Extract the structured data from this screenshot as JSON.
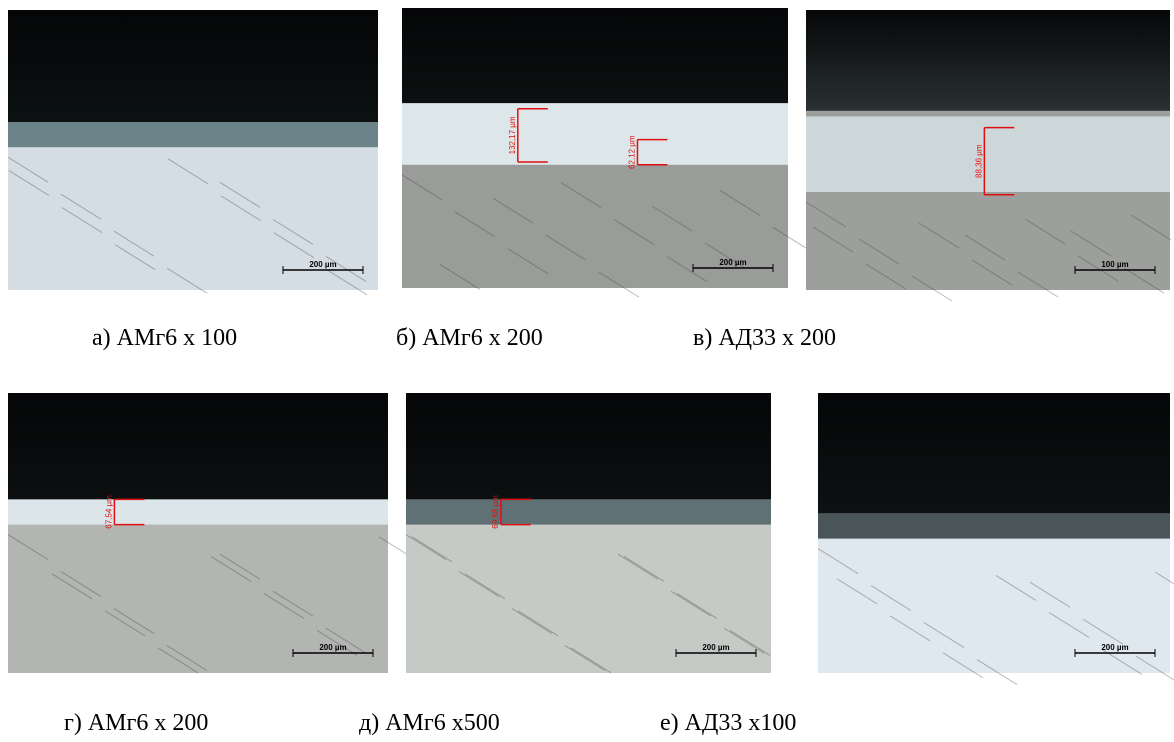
{
  "panels": [
    {
      "caption": "а) АМг6 х 100",
      "scale_bar": "200 µm"
    },
    {
      "caption": "б) АМг6 х 200",
      "scale_bar": "200 µm",
      "measurements": [
        "132,17 µm",
        "62,12 µm"
      ]
    },
    {
      "caption": "в) АД33 х 200",
      "scale_bar": "100 µm",
      "measurements": [
        "88,36 µm"
      ]
    },
    {
      "caption": "г) АМг6 х 200",
      "scale_bar": "200 µm",
      "measurements": [
        "67,54 µm"
      ]
    },
    {
      "caption": "д) АМг6 х500",
      "scale_bar": "200 µm",
      "measurements": [
        "69,58 µm"
      ]
    },
    {
      "caption": "е) АД33 х100",
      "scale_bar": "200 µm"
    }
  ]
}
